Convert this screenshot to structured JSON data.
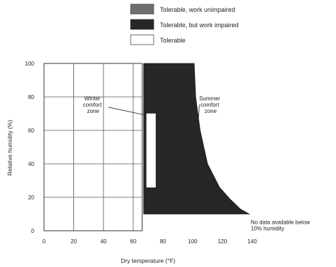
{
  "chart_data": {
    "type": "area",
    "xlabel": "Dry temperature (°F)",
    "ylabel": "Relative humidity (%)",
    "xlim": [
      0,
      140
    ],
    "ylim": [
      0,
      100
    ],
    "x_ticks": [
      "0",
      "20",
      "40",
      "60",
      "80",
      "100",
      "120",
      "140"
    ],
    "y_ticks": [
      "0",
      "20",
      "40",
      "60",
      "80",
      "100"
    ],
    "grid": true,
    "legend_position": "top",
    "legend": [
      {
        "label": "Tolerable, work unimpaired",
        "color": "#6e6e6e"
      },
      {
        "label": "Tolerable, but work impaired",
        "color": "#262626"
      },
      {
        "label": "Tolerable",
        "color": "#ffffff"
      }
    ],
    "regions": [
      {
        "name": "Tolerable, but work impaired",
        "color": "#262626",
        "boundary": [
          [
            67,
            100
          ],
          [
            101,
            100
          ],
          [
            102,
            80
          ],
          [
            105,
            60
          ],
          [
            110,
            40
          ],
          [
            118,
            26
          ],
          [
            125,
            19
          ],
          [
            132,
            13
          ],
          [
            138,
            10
          ],
          [
            67,
            10
          ]
        ]
      }
    ],
    "zones": [
      {
        "name": "Winter comfort zone",
        "x": [
          69,
          75
        ],
        "y": [
          26,
          70
        ],
        "color": "#ffffff"
      }
    ],
    "annotations": [
      {
        "lines": [
          "Winter",
          "comfort",
          "zone"
        ],
        "x": 33,
        "y": 78
      },
      {
        "lines": [
          "Summer",
          "comfort",
          "zone"
        ],
        "x": 112,
        "y": 78
      },
      {
        "lines": [
          "No data available below",
          "10% humidity"
        ],
        "x": 139,
        "y": 4
      }
    ]
  }
}
